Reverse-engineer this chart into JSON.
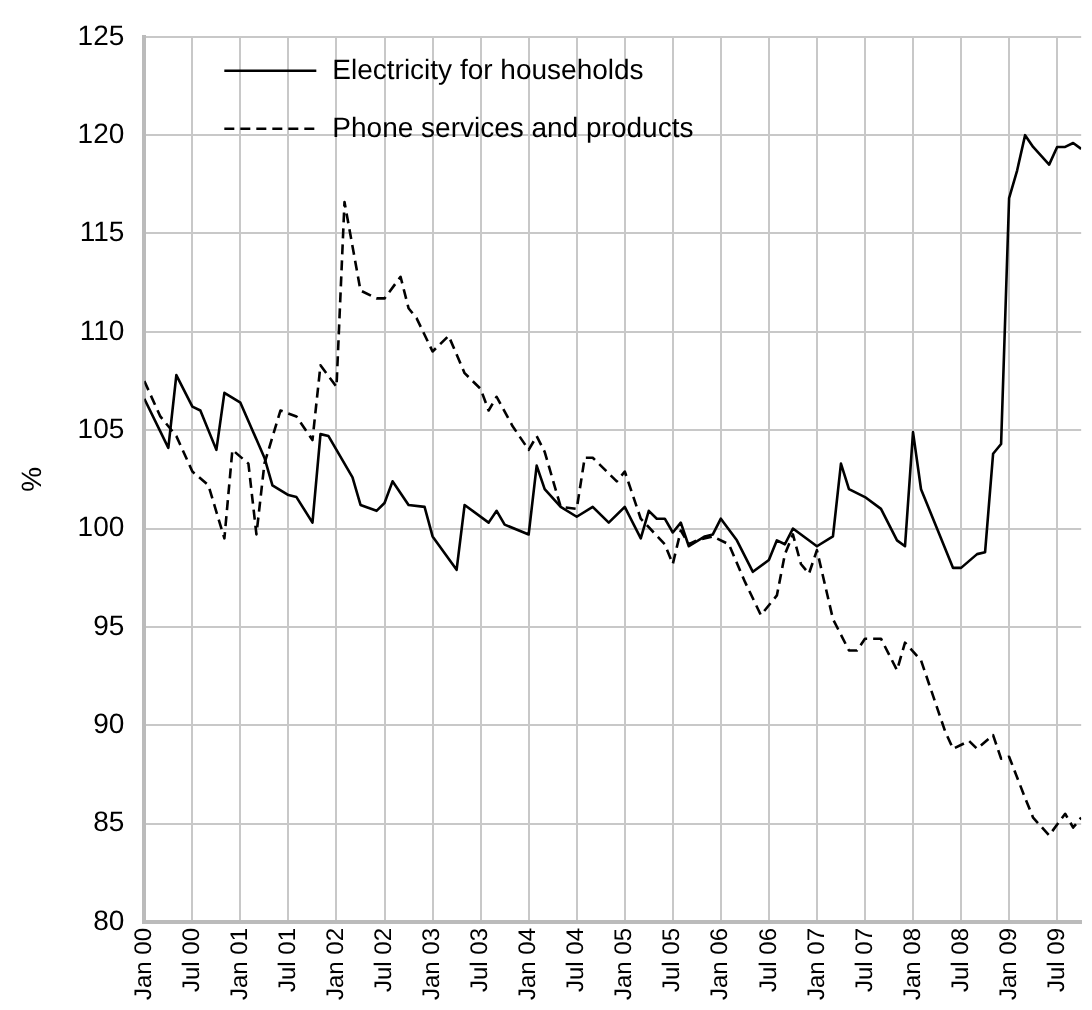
{
  "chart_data": {
    "type": "line",
    "ylabel": "%",
    "ylim": [
      80,
      125
    ],
    "yticks": [
      80,
      85,
      90,
      95,
      100,
      105,
      110,
      115,
      120,
      125
    ],
    "xlim": [
      "2000-01",
      "2009-10"
    ],
    "xticks": [
      {
        "value": "2000-01",
        "label": "Jan 00"
      },
      {
        "value": "2000-07",
        "label": "Jul 00"
      },
      {
        "value": "2001-01",
        "label": "Jan 01"
      },
      {
        "value": "2001-07",
        "label": "Jul 01"
      },
      {
        "value": "2002-01",
        "label": "Jan 02"
      },
      {
        "value": "2002-07",
        "label": "Jul 02"
      },
      {
        "value": "2003-01",
        "label": "Jan 03"
      },
      {
        "value": "2003-07",
        "label": "Jul 03"
      },
      {
        "value": "2004-01",
        "label": "Jan 04"
      },
      {
        "value": "2004-07",
        "label": "Jul 04"
      },
      {
        "value": "2005-01",
        "label": "Jan 05"
      },
      {
        "value": "2005-07",
        "label": "Jul 05"
      },
      {
        "value": "2006-01",
        "label": "Jan 06"
      },
      {
        "value": "2006-07",
        "label": "Jul 06"
      },
      {
        "value": "2007-01",
        "label": "Jan 07"
      },
      {
        "value": "2007-07",
        "label": "Jul 07"
      },
      {
        "value": "2008-01",
        "label": "Jan 08"
      },
      {
        "value": "2008-07",
        "label": "Jul 08"
      },
      {
        "value": "2009-01",
        "label": "Jan 09"
      },
      {
        "value": "2009-07",
        "label": "Jul 09"
      }
    ],
    "grid": true,
    "legend": "top left",
    "marker": "none",
    "series": [
      {
        "name": "Electricity for households",
        "color": "#000000",
        "line_style": "solid",
        "x": [
          "2000-01",
          "2000-04",
          "2000-05",
          "2000-07",
          "2000-08",
          "2000-10",
          "2000-11",
          "2001-01",
          "2001-04",
          "2001-05",
          "2001-07",
          "2001-08",
          "2001-10",
          "2001-11",
          "2001-12",
          "2002-03",
          "2002-04",
          "2002-06",
          "2002-07",
          "2002-08",
          "2002-10",
          "2002-12",
          "2003-01",
          "2003-04",
          "2003-05",
          "2003-08",
          "2003-09",
          "2003-10",
          "2004-01",
          "2004-02",
          "2004-03",
          "2004-05",
          "2004-07",
          "2004-09",
          "2004-11",
          "2005-01",
          "2005-03",
          "2005-04",
          "2005-05",
          "2005-06",
          "2005-07",
          "2005-08",
          "2005-09",
          "2005-11",
          "2005-12",
          "2006-01",
          "2006-03",
          "2006-05",
          "2006-07",
          "2006-08",
          "2006-09",
          "2006-10",
          "2007-01",
          "2007-03",
          "2007-04",
          "2007-05",
          "2007-07",
          "2007-09",
          "2007-11",
          "2007-12",
          "2008-01",
          "2008-02",
          "2008-06",
          "2008-07",
          "2008-09",
          "2008-10",
          "2008-11",
          "2008-12",
          "2009-01",
          "2009-02",
          "2009-03",
          "2009-04",
          "2009-06",
          "2009-07",
          "2009-08",
          "2009-09",
          "2009-10"
        ],
        "values": [
          106.6,
          104.1,
          107.8,
          106.2,
          106.0,
          104.0,
          106.9,
          106.4,
          103.6,
          102.2,
          101.7,
          101.6,
          100.3,
          104.8,
          104.7,
          102.6,
          101.2,
          100.9,
          101.3,
          102.4,
          101.2,
          101.1,
          99.6,
          97.9,
          101.2,
          100.3,
          100.9,
          100.2,
          99.7,
          103.2,
          102.0,
          101.1,
          100.6,
          101.1,
          100.3,
          101.1,
          99.5,
          100.9,
          100.5,
          100.5,
          99.8,
          100.3,
          99.1,
          99.6,
          99.7,
          100.5,
          99.4,
          97.8,
          98.4,
          99.4,
          99.2,
          100.0,
          99.1,
          99.6,
          103.3,
          102.0,
          101.6,
          101.0,
          99.4,
          99.1,
          104.9,
          102.0,
          98.0,
          98.0,
          98.7,
          98.8,
          103.8,
          104.3,
          116.8,
          118.2,
          120.0,
          119.4,
          118.5,
          119.4,
          119.4,
          119.6,
          119.3
        ]
      },
      {
        "name": "Phone services and products",
        "color": "#000000",
        "line_style": "dashed",
        "x": [
          "2000-01",
          "2000-03",
          "2000-05",
          "2000-07",
          "2000-09",
          "2000-11",
          "2000-12",
          "2001-02",
          "2001-03",
          "2001-04",
          "2001-06",
          "2001-08",
          "2001-10",
          "2001-11",
          "2002-01",
          "2002-02",
          "2002-04",
          "2002-06",
          "2002-07",
          "2002-09",
          "2002-10",
          "2002-11",
          "2003-01",
          "2003-03",
          "2003-05",
          "2003-07",
          "2003-08",
          "2003-09",
          "2003-11",
          "2004-01",
          "2004-02",
          "2004-03",
          "2004-05",
          "2004-07",
          "2004-08",
          "2004-09",
          "2004-12",
          "2005-01",
          "2005-03",
          "2005-06",
          "2005-07",
          "2005-08",
          "2005-09",
          "2005-10",
          "2005-12",
          "2006-02",
          "2006-04",
          "2006-06",
          "2006-08",
          "2006-09",
          "2006-10",
          "2006-11",
          "2006-12",
          "2007-01",
          "2007-03",
          "2007-05",
          "2007-06",
          "2007-07",
          "2007-09",
          "2007-11",
          "2007-12",
          "2008-02",
          "2008-05",
          "2008-06",
          "2008-08",
          "2008-09",
          "2008-11",
          "2008-12",
          "2009-01",
          "2009-03",
          "2009-04",
          "2009-06",
          "2009-08",
          "2009-09",
          "2009-10"
        ],
        "values": [
          107.5,
          105.7,
          104.7,
          102.9,
          102.2,
          99.5,
          104.0,
          103.3,
          99.7,
          103.3,
          106.0,
          105.7,
          104.5,
          108.3,
          107.2,
          116.6,
          112.1,
          111.7,
          111.7,
          112.8,
          111.2,
          110.7,
          109.0,
          109.8,
          107.9,
          107.1,
          106.0,
          106.7,
          105.2,
          104.0,
          104.7,
          103.9,
          101.1,
          101.0,
          103.6,
          103.6,
          102.4,
          102.9,
          100.5,
          99.2,
          98.2,
          99.9,
          99.2,
          99.4,
          99.6,
          99.2,
          97.3,
          95.6,
          96.6,
          98.7,
          99.7,
          98.2,
          97.7,
          98.9,
          95.4,
          93.8,
          93.8,
          94.4,
          94.4,
          92.8,
          94.2,
          93.3,
          89.7,
          88.8,
          89.2,
          88.8,
          89.5,
          88.3,
          88.4,
          86.3,
          85.3,
          84.4,
          85.5,
          84.8,
          85.3
        ]
      }
    ]
  }
}
